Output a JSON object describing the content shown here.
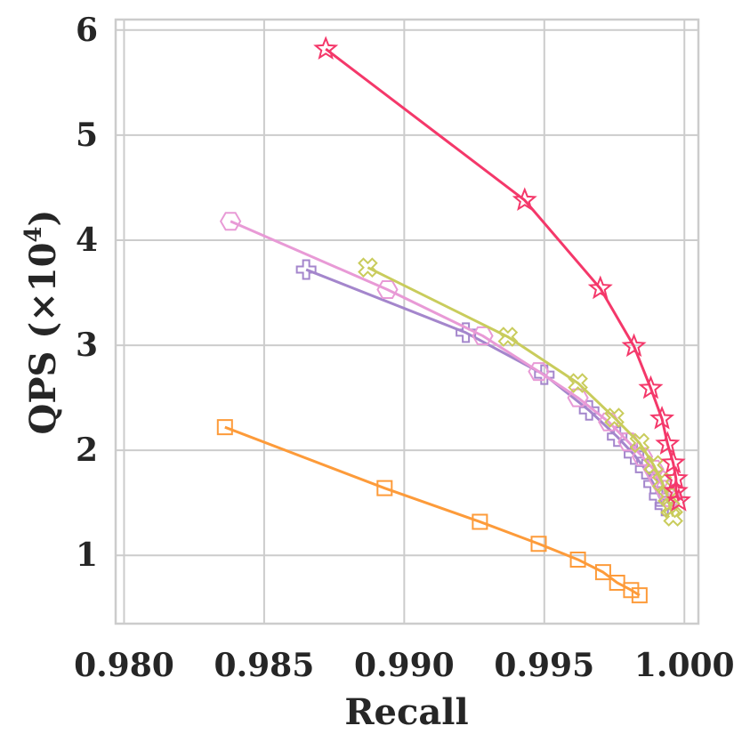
{
  "chart_data": {
    "type": "line",
    "xlabel": "Recall",
    "ylabel": "QPS (×10",
    "ylabel_sup": "4",
    "ylabel_close": ")",
    "xlim": [
      0.9797,
      1.0005
    ],
    "ylim": [
      0.35,
      6.1
    ],
    "xticks": [
      0.98,
      0.985,
      0.99,
      0.995,
      1.0
    ],
    "xtick_labels": [
      "0.980",
      "0.985",
      "0.990",
      "0.995",
      "1.000"
    ],
    "yticks": [
      1,
      2,
      3,
      4,
      5,
      6
    ],
    "ytick_labels": [
      "1",
      "2",
      "3",
      "4",
      "5",
      "6"
    ],
    "grid": true,
    "legend": "none",
    "series": [
      {
        "color": "#fd9b3a",
        "marker": "square",
        "points": [
          [
            0.9836,
            2.22
          ],
          [
            0.9893,
            1.64
          ],
          [
            0.9927,
            1.32
          ],
          [
            0.9948,
            1.11
          ],
          [
            0.9962,
            0.96
          ],
          [
            0.9971,
            0.84
          ],
          [
            0.9976,
            0.74
          ],
          [
            0.9981,
            0.67
          ],
          [
            0.9984,
            0.62
          ]
        ]
      },
      {
        "color": "#a486cc",
        "marker": "plus",
        "points": [
          [
            0.9865,
            3.72
          ],
          [
            0.9922,
            3.12
          ],
          [
            0.995,
            2.72
          ],
          [
            0.9966,
            2.38
          ],
          [
            0.9976,
            2.13
          ],
          [
            0.9982,
            1.96
          ],
          [
            0.9986,
            1.82
          ],
          [
            0.9989,
            1.68
          ],
          [
            0.9991,
            1.56
          ],
          [
            0.9993,
            1.47
          ]
        ]
      },
      {
        "color": "#e89ad6",
        "marker": "hexagon",
        "points": [
          [
            0.9838,
            4.18
          ],
          [
            0.9894,
            3.53
          ],
          [
            0.9928,
            3.09
          ],
          [
            0.9948,
            2.75
          ],
          [
            0.9962,
            2.5
          ],
          [
            0.9973,
            2.27
          ],
          [
            0.998,
            2.08
          ],
          [
            0.9985,
            1.94
          ],
          [
            0.9989,
            1.82
          ],
          [
            0.9991,
            1.72
          ],
          [
            0.9993,
            1.63
          ],
          [
            0.9995,
            1.55
          ]
        ]
      },
      {
        "color": "#c9cc5c",
        "marker": "x",
        "points": [
          [
            0.9887,
            3.74
          ],
          [
            0.9937,
            3.08
          ],
          [
            0.9962,
            2.64
          ],
          [
            0.9975,
            2.31
          ],
          [
            0.9984,
            2.07
          ],
          [
            0.9989,
            1.86
          ],
          [
            0.9992,
            1.7
          ],
          [
            0.9994,
            1.56
          ],
          [
            0.9995,
            1.45
          ],
          [
            0.9996,
            1.37
          ]
        ]
      },
      {
        "color": "#f4386a",
        "marker": "star",
        "points": [
          [
            0.9872,
            5.82
          ],
          [
            0.9943,
            4.38
          ],
          [
            0.997,
            3.54
          ],
          [
            0.9982,
            2.99
          ],
          [
            0.9988,
            2.59
          ],
          [
            0.9992,
            2.3
          ],
          [
            0.9994,
            2.06
          ],
          [
            0.9996,
            1.88
          ],
          [
            0.9997,
            1.73
          ],
          [
            0.9997,
            1.61
          ],
          [
            0.9998,
            1.52
          ]
        ]
      }
    ]
  }
}
